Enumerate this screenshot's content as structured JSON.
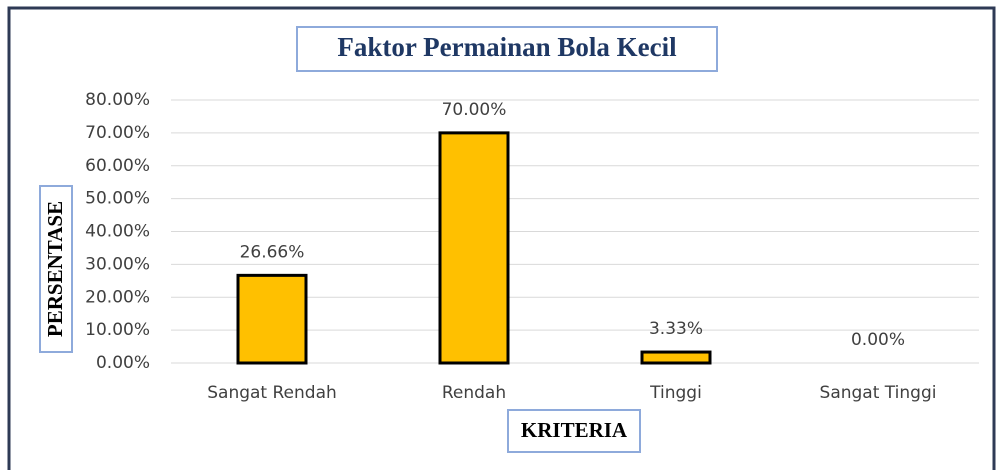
{
  "chart_data": {
    "type": "bar",
    "title": "Faktor Permainan Bola Kecil",
    "x_label": "KRITERIA",
    "y_label": "PERSENTASE",
    "categories": [
      "Sangat Rendah",
      "Rendah",
      "Tinggi",
      "Sangat Tinggi"
    ],
    "values": [
      26.66,
      70,
      3.33,
      0
    ],
    "value_labels": [
      "26.66%",
      "70.00%",
      "3.33%",
      "0.00%"
    ],
    "color": "#ffc000",
    "ylim": [
      0,
      80
    ],
    "yticks": [
      {
        "value": 0,
        "label": "0.00%"
      },
      {
        "value": 10,
        "label": "10.00%"
      },
      {
        "value": 20,
        "label": "20.00%"
      },
      {
        "value": 30,
        "label": "30.00%"
      },
      {
        "value": 40,
        "label": "40.00%"
      },
      {
        "value": 50,
        "label": "50.00%"
      },
      {
        "value": 60,
        "label": "60.00%"
      },
      {
        "value": 70,
        "label": "70.00%"
      },
      {
        "value": 80,
        "label": "80.00%"
      }
    ],
    "grid": true
  }
}
